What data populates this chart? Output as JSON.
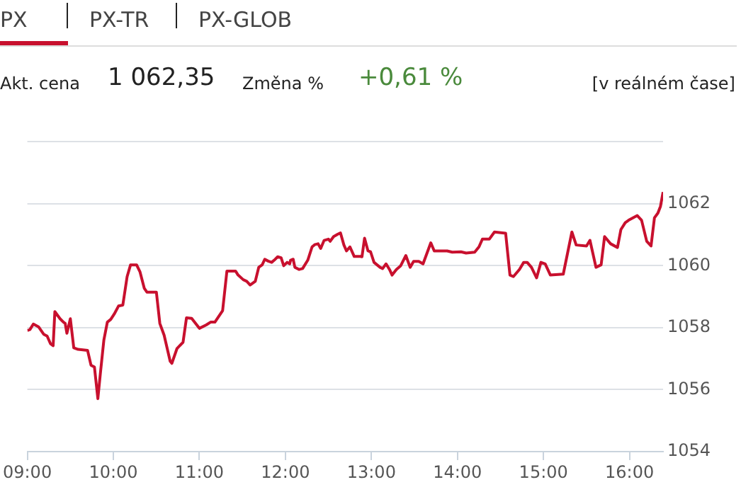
{
  "chart_data": {
    "type": "line",
    "title": "PX",
    "annotations": [
      "PX-TR",
      "PX-GLOB",
      "Akt. cena",
      "1 062,35",
      "Změna %",
      "+0,61 %",
      "[v reálném čase]"
    ],
    "xlim": [
      9,
      16.39
    ],
    "xticks": [
      {
        "value": 9,
        "label": "09:00"
      },
      {
        "value": 10,
        "label": "10:00"
      },
      {
        "value": 11,
        "label": "11:00"
      },
      {
        "value": 12,
        "label": "12:00"
      },
      {
        "value": 13,
        "label": "13:00"
      },
      {
        "value": 14,
        "label": "14:00"
      },
      {
        "value": 15,
        "label": "15:00"
      },
      {
        "value": 16,
        "label": "16:00"
      }
    ],
    "ylim": [
      1054,
      1064
    ],
    "yticks": [
      1054,
      1056,
      1058,
      1060,
      1062,
      {
        "value": 1064,
        "label": null
      }
    ],
    "grid": "y",
    "legend": false,
    "marker": "none",
    "line_style": "solid",
    "x": [
      9.0,
      9.03,
      9.07,
      9.13,
      9.19,
      9.23,
      9.27,
      9.3,
      9.32,
      9.38,
      9.42,
      9.44,
      9.46,
      9.5,
      9.54,
      9.59,
      9.7,
      9.74,
      9.78,
      9.82,
      9.85,
      9.89,
      9.93,
      9.97,
      10.01,
      10.06,
      10.11,
      10.16,
      10.2,
      10.27,
      10.31,
      10.36,
      10.39,
      10.5,
      10.54,
      10.59,
      10.66,
      10.68,
      10.74,
      10.81,
      10.85,
      10.91,
      11.0,
      11.08,
      11.13,
      11.18,
      11.27,
      11.32,
      11.42,
      11.45,
      11.51,
      11.55,
      11.59,
      11.65,
      11.69,
      11.73,
      11.76,
      11.8,
      11.84,
      11.87,
      11.91,
      11.95,
      11.98,
      12.02,
      12.05,
      12.06,
      12.09,
      12.11,
      12.16,
      12.2,
      12.26,
      12.31,
      12.34,
      12.38,
      12.41,
      12.45,
      12.5,
      12.52,
      12.56,
      12.61,
      12.64,
      12.68,
      12.71,
      12.75,
      12.8,
      12.87,
      12.89,
      12.92,
      12.96,
      12.99,
      13.03,
      13.1,
      13.13,
      13.17,
      13.21,
      13.24,
      13.29,
      13.34,
      13.4,
      13.45,
      13.49,
      13.55,
      13.6,
      13.69,
      13.73,
      13.88,
      13.94,
      14.04,
      14.1,
      14.2,
      14.25,
      14.29,
      14.37,
      14.43,
      14.56,
      14.61,
      14.65,
      14.72,
      14.77,
      14.81,
      14.86,
      14.92,
      14.97,
      15.02,
      15.08,
      15.23,
      15.33,
      15.38,
      15.5,
      15.54,
      15.61,
      15.67,
      15.71,
      15.78,
      15.86,
      15.9,
      15.95,
      15.99,
      16.09,
      16.14,
      16.2,
      16.25,
      16.29,
      16.33,
      16.36,
      16.39
    ],
    "series": [
      {
        "color": "#c8102e",
        "values": [
          1057.91,
          1057.94,
          1058.12,
          1058.03,
          1057.79,
          1057.73,
          1057.48,
          1057.42,
          1058.52,
          1058.29,
          1058.18,
          1058.14,
          1057.82,
          1058.29,
          1057.35,
          1057.3,
          1057.27,
          1056.79,
          1056.73,
          1055.71,
          1056.55,
          1057.61,
          1058.18,
          1058.27,
          1058.44,
          1058.7,
          1058.73,
          1059.65,
          1060.03,
          1060.03,
          1059.8,
          1059.27,
          1059.15,
          1059.15,
          1058.14,
          1057.76,
          1056.92,
          1056.85,
          1057.33,
          1057.53,
          1058.32,
          1058.3,
          1057.98,
          1058.09,
          1058.18,
          1058.18,
          1058.55,
          1059.83,
          1059.83,
          1059.7,
          1059.55,
          1059.5,
          1059.38,
          1059.5,
          1059.95,
          1060.03,
          1060.21,
          1060.15,
          1060.11,
          1060.18,
          1060.29,
          1060.26,
          1060.0,
          1060.11,
          1060.06,
          1060.18,
          1060.21,
          1059.95,
          1059.88,
          1059.91,
          1060.18,
          1060.61,
          1060.68,
          1060.71,
          1060.56,
          1060.82,
          1060.86,
          1060.79,
          1060.94,
          1061.02,
          1061.06,
          1060.67,
          1060.48,
          1060.61,
          1060.3,
          1060.3,
          1060.29,
          1060.89,
          1060.48,
          1060.45,
          1060.11,
          1059.95,
          1059.91,
          1060.06,
          1059.88,
          1059.7,
          1059.88,
          1060.0,
          1060.33,
          1059.95,
          1060.14,
          1060.14,
          1060.06,
          1060.74,
          1060.48,
          1060.48,
          1060.44,
          1060.45,
          1060.41,
          1060.44,
          1060.61,
          1060.86,
          1060.86,
          1061.09,
          1061.05,
          1059.7,
          1059.65,
          1059.88,
          1060.11,
          1060.11,
          1059.95,
          1059.61,
          1060.11,
          1060.06,
          1059.7,
          1059.73,
          1061.09,
          1060.67,
          1060.64,
          1060.82,
          1059.95,
          1060.03,
          1060.94,
          1060.71,
          1060.59,
          1061.17,
          1061.39,
          1061.47,
          1061.62,
          1061.47,
          1060.79,
          1060.64,
          1061.55,
          1061.7,
          1061.92,
          1062.38
        ]
      }
    ]
  }
}
